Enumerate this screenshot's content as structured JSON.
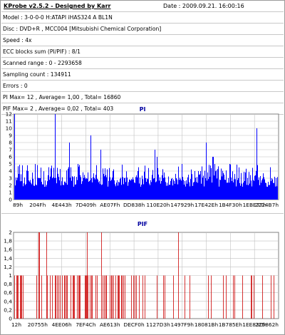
{
  "header": {
    "title": "KProbe v2.5.2 - Designed by Karr",
    "date": "Date : 2009.09.21. 16:00:16"
  },
  "info": {
    "lines": [
      "Model : 3-0-0-0 H:ATAPI   iHAS324   A      BL1N",
      "Disc : DVD+R , MCC004 [Mitsubishi Chemical Corporation]",
      "Speed : 4x",
      "ECC blocks sum (PI/PIF) : 8/1",
      "Scanned range : 0 - 2293658",
      "Sampling count : 134911",
      "Errors : 0",
      "PI Max= 12 , Average= 1,00 , Total= 16860",
      "PIF Max= 2 , Average= 0,02 , Total= 403"
    ]
  },
  "colors": {
    "pi_fill": "#0000ff",
    "pif_line": "#cc0000",
    "grid": "#c0c0c0",
    "title_blue": "#0000a0"
  },
  "chart_data": [
    {
      "type": "bar",
      "title": "PI",
      "ylim": [
        0,
        12
      ],
      "yticks": [
        "0",
        "1",
        "2",
        "3",
        "4",
        "5",
        "6",
        "7",
        "8",
        "9",
        "10",
        "11",
        "12"
      ],
      "xticks": [
        "89h",
        "204Fh",
        "4E443h",
        "7D409h",
        "AE07Fh",
        "DD838h",
        "110E20h",
        "147929h",
        "17E42Eh",
        "1B4F30h",
        "1EBE77h",
        "2224B7h"
      ],
      "baseline": 2.5,
      "peaks": [
        12,
        10,
        9,
        8,
        8,
        7,
        7,
        6,
        6,
        6,
        5,
        5,
        5,
        5,
        4,
        4,
        4,
        4,
        4,
        4
      ]
    },
    {
      "type": "bar",
      "title": "PIF",
      "ylim": [
        0,
        2
      ],
      "yticks": [
        "0",
        "0,2",
        "0,4",
        "0,6",
        "0,8",
        "1",
        "1,2",
        "1,4",
        "1,6",
        "1,8",
        "2"
      ],
      "xticks": [
        "12h",
        "20755h",
        "4EE06h",
        "7EF4Ch",
        "AE613h",
        "DECF0h",
        "1127D3h",
        "1497F9h",
        "18081Bh",
        "1B785Eh",
        "1EE83Dh",
        "225862h"
      ],
      "values_note": "sparse spikes of 1 and 2"
    }
  ]
}
